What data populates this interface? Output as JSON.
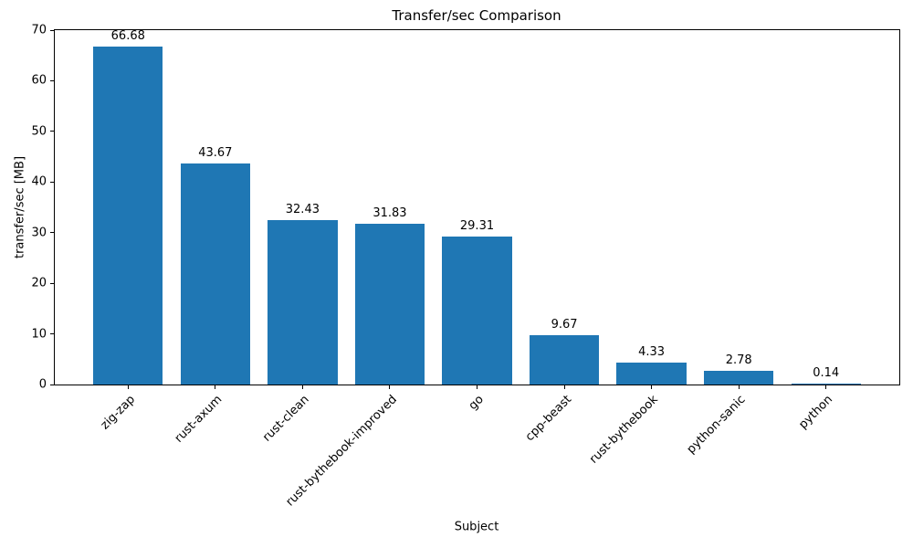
{
  "chart_data": {
    "type": "bar",
    "title": "Transfer/sec Comparison",
    "xlabel": "Subject",
    "ylabel": "transfer/sec [MB]",
    "categories": [
      "zig-zap",
      "rust-axum",
      "rust-clean",
      "rust-bythebook-improved",
      "go",
      "cpp-beast",
      "rust-bythebook",
      "python-sanic",
      "python"
    ],
    "values": [
      66.68,
      43.67,
      32.43,
      31.83,
      29.31,
      9.67,
      4.33,
      2.78,
      0.14
    ],
    "value_labels": [
      "66.68",
      "43.67",
      "32.43",
      "31.83",
      "29.31",
      "9.67",
      "4.33",
      "2.78",
      "0.14"
    ],
    "bar_color": "#1f77b4",
    "ylim": [
      0,
      70
    ],
    "yticks": [
      0,
      10,
      20,
      30,
      40,
      50,
      60,
      70
    ],
    "grid": false,
    "legend": "none",
    "background_color": "#ffffff",
    "axis_color": "#000000"
  }
}
